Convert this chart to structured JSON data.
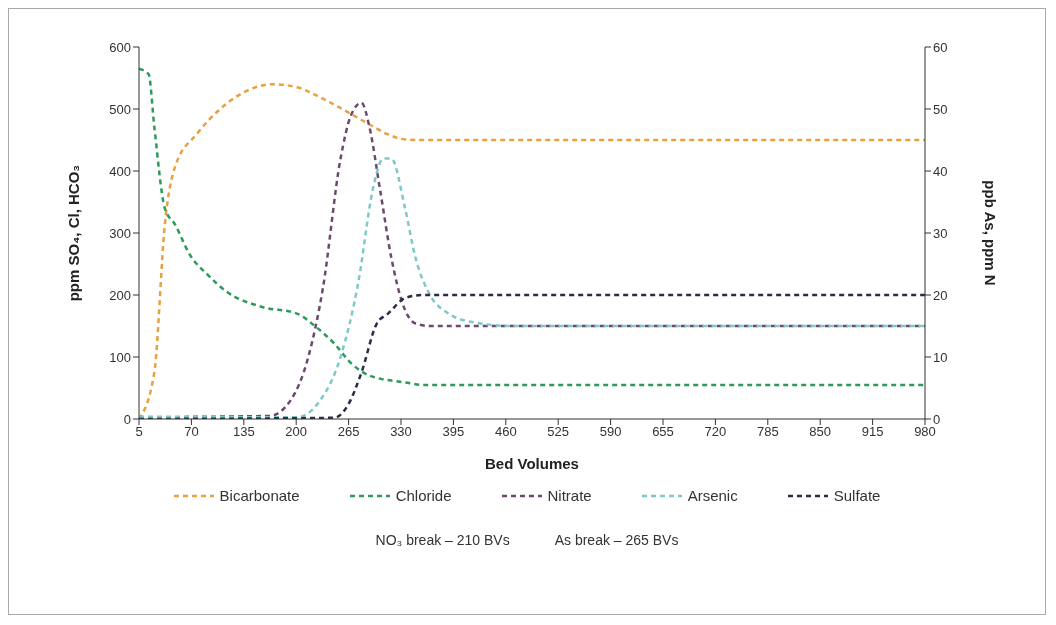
{
  "chart_data": {
    "type": "line",
    "xlabel": "Bed Volumes",
    "ylabel": "ppm SO₄, Cl, HCO₃",
    "y2label": "ppb As, ppm N",
    "xlim": [
      5,
      980
    ],
    "xticks": [
      5,
      70,
      135,
      200,
      265,
      330,
      395,
      460,
      525,
      590,
      655,
      720,
      785,
      850,
      915,
      980
    ],
    "ylim": [
      0,
      600
    ],
    "yticks": [
      0,
      100,
      200,
      300,
      400,
      500,
      600
    ],
    "y2lim": [
      0,
      60
    ],
    "y2ticks": [
      0,
      10,
      20,
      30,
      40,
      50,
      60
    ],
    "grid": false,
    "legend": "bottom",
    "marker": "none",
    "line_style": "dashed",
    "series": [
      {
        "name": "Bicarbonate",
        "color": "#e8a040",
        "x": [
          5,
          24,
          37,
          50,
          77,
          104,
          140,
          171,
          201,
          237,
          268,
          291,
          314,
          335,
          357,
          980
        ],
        "values": [
          0,
          75,
          313,
          408,
          460,
          498,
          530,
          540,
          535,
          514,
          492,
          475,
          459,
          451,
          450,
          450
        ]
      },
      {
        "name": "Chloride",
        "color": "#2e9a5a",
        "x": [
          5,
          17,
          24,
          37,
          50,
          68,
          90,
          113,
          157,
          201,
          224,
          247,
          268,
          291,
          335,
          357,
          980
        ],
        "values": [
          565,
          556,
          471,
          340,
          313,
          265,
          233,
          206,
          181,
          170,
          149,
          122,
          90,
          70,
          59,
          55,
          55
        ]
      },
      {
        "name": "Nitrate",
        "color": "#6b4a6e",
        "axis": "y2",
        "x": [
          5,
          167,
          193,
          215,
          233,
          255,
          268,
          281,
          291,
          304,
          318,
          331,
          348,
          366,
          980
        ],
        "values": [
          0.3,
          0.5,
          3,
          10,
          21,
          42,
          49,
          51,
          47,
          37,
          26,
          19,
          15.4,
          15,
          15
        ]
      },
      {
        "name": "Arsenic",
        "color": "#7fc8c8",
        "axis": "y2",
        "x": [
          5,
          201,
          228,
          255,
          277,
          295,
          308,
          318,
          335,
          348,
          366,
          389,
          416,
          468,
          980
        ],
        "values": [
          0.3,
          0.3,
          2.7,
          10,
          22,
          37,
          42,
          42,
          34,
          26,
          20,
          17,
          15.7,
          15,
          15
        ]
      },
      {
        "name": "Sulfate",
        "color": "#2a2a4a",
        "x": [
          5,
          247,
          264,
          281,
          300,
          314,
          335,
          357,
          980
        ],
        "values": [
          0,
          2,
          22,
          75,
          154,
          170,
          195,
          200,
          200
        ]
      }
    ],
    "annotations": [
      "NO₃ break – 210 BVs",
      "As break – 265 BVs"
    ]
  }
}
